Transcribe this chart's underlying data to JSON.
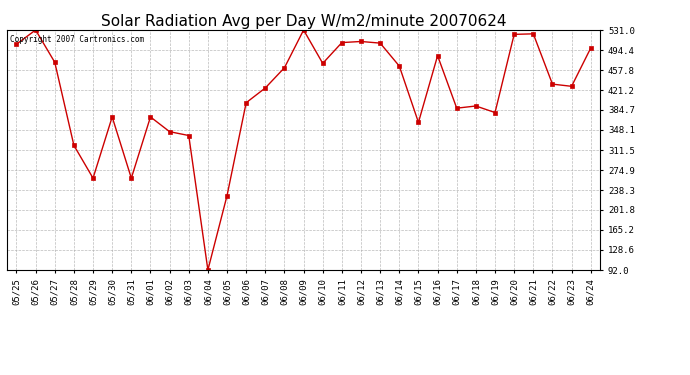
{
  "title": "Solar Radiation Avg per Day W/m2/minute 20070624",
  "copyright": "Copyright 2007 Cartronics.com",
  "dates": [
    "05/25",
    "05/26",
    "05/27",
    "05/28",
    "05/29",
    "05/30",
    "05/31",
    "06/01",
    "06/02",
    "06/03",
    "06/04",
    "06/05",
    "06/06",
    "06/07",
    "06/08",
    "06/09",
    "06/10",
    "06/11",
    "06/12",
    "06/13",
    "06/14",
    "06/15",
    "06/16",
    "06/17",
    "06/18",
    "06/19",
    "06/20",
    "06/21",
    "06/22",
    "06/23",
    "06/24"
  ],
  "values": [
    505.0,
    531.0,
    472.0,
    320.0,
    260.0,
    372.0,
    260.0,
    372.0,
    345.0,
    338.0,
    92.0,
    228.0,
    398.0,
    425.0,
    462.0,
    531.0,
    470.0,
    508.0,
    510.0,
    507.0,
    465.0,
    362.0,
    484.0,
    388.0,
    392.0,
    380.0,
    523.0,
    524.0,
    432.0,
    428.0,
    498.0
  ],
  "line_color": "#cc0000",
  "marker": "s",
  "marker_size": 2.5,
  "bg_color": "#ffffff",
  "grid_color": "#aaaaaa",
  "yticks": [
    92.0,
    128.6,
    165.2,
    201.8,
    238.3,
    274.9,
    311.5,
    348.1,
    384.7,
    421.2,
    457.8,
    494.4,
    531.0
  ],
  "ymin": 92.0,
  "ymax": 531.0,
  "title_fontsize": 11,
  "tick_fontsize": 6.5,
  "copyright_fontsize": 5.5
}
